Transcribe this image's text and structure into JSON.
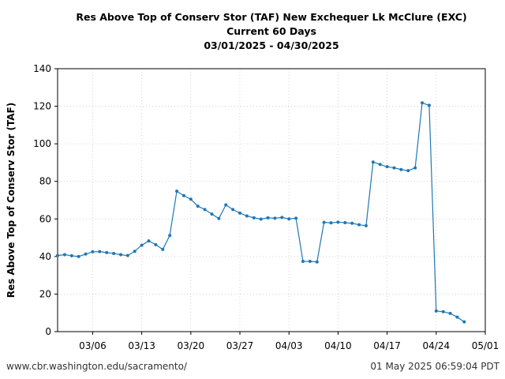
{
  "chart_data": {
    "type": "line",
    "title": "Res Above Top of Conserv Stor (TAF) New Exchequer Lk McClure (EXC)",
    "subtitle": "Current 60 Days",
    "date_range": "03/01/2025 - 04/30/2025",
    "xlabel": "",
    "ylabel": "Res Above Top of Conserv Stor (TAF)",
    "xlim": [
      "2025-03-01",
      "2025-05-01"
    ],
    "ylim": [
      0,
      140
    ],
    "yticks": [
      0,
      20,
      40,
      60,
      80,
      100,
      120,
      140
    ],
    "xticks": [
      {
        "date": "2025-03-06",
        "label": "03/06"
      },
      {
        "date": "2025-03-13",
        "label": "03/13"
      },
      {
        "date": "2025-03-20",
        "label": "03/20"
      },
      {
        "date": "2025-03-27",
        "label": "03/27"
      },
      {
        "date": "2025-04-03",
        "label": "04/03"
      },
      {
        "date": "2025-04-10",
        "label": "04/10"
      },
      {
        "date": "2025-04-17",
        "label": "04/17"
      },
      {
        "date": "2025-04-24",
        "label": "04/24"
      },
      {
        "date": "2025-05-01",
        "label": "05/01"
      }
    ],
    "grid": true,
    "color": "#1f77b4",
    "series": [
      {
        "x": [
          "2025-03-01",
          "2025-03-02",
          "2025-03-03",
          "2025-03-04",
          "2025-03-05",
          "2025-03-06",
          "2025-03-07",
          "2025-03-08",
          "2025-03-09",
          "2025-03-10",
          "2025-03-11",
          "2025-03-12",
          "2025-03-13",
          "2025-03-14",
          "2025-03-15",
          "2025-03-16",
          "2025-03-17",
          "2025-03-18",
          "2025-03-19",
          "2025-03-20",
          "2025-03-21",
          "2025-03-22",
          "2025-03-23",
          "2025-03-24",
          "2025-03-25",
          "2025-03-26",
          "2025-03-27",
          "2025-03-28",
          "2025-03-29",
          "2025-03-30",
          "2025-03-31",
          "2025-04-01",
          "2025-04-02",
          "2025-04-03",
          "2025-04-04",
          "2025-04-05",
          "2025-04-06",
          "2025-04-07",
          "2025-04-08",
          "2025-04-09",
          "2025-04-10",
          "2025-04-11",
          "2025-04-12",
          "2025-04-13",
          "2025-04-14",
          "2025-04-15",
          "2025-04-16",
          "2025-04-17",
          "2025-04-18",
          "2025-04-19",
          "2025-04-20",
          "2025-04-21",
          "2025-04-22",
          "2025-04-23",
          "2025-04-24",
          "2025-04-25",
          "2025-04-26",
          "2025-04-27",
          "2025-04-28"
        ],
        "y": [
          40.5,
          41.0,
          40.4,
          40.0,
          41.3,
          42.5,
          42.6,
          42.1,
          41.6,
          41.0,
          40.5,
          42.8,
          46.0,
          48.3,
          46.3,
          43.8,
          51.2,
          74.8,
          72.4,
          70.5,
          66.8,
          65.0,
          62.6,
          60.2,
          67.5,
          65.0,
          63.1,
          61.6,
          60.6,
          59.9,
          60.6,
          60.4,
          60.8,
          60.0,
          60.4,
          37.4,
          37.4,
          37.1,
          58.2,
          57.9,
          58.3,
          58.0,
          57.7,
          56.9,
          56.4,
          90.3,
          89.0,
          87.8,
          87.2,
          86.3,
          85.7,
          87.2,
          121.8,
          120.5,
          11.0,
          10.6,
          9.7,
          7.7,
          5.2
        ]
      }
    ]
  },
  "footer": {
    "url": "www.cbr.washington.edu/sacramento/",
    "timestamp": "01 May 2025 06:59:04 PDT"
  }
}
